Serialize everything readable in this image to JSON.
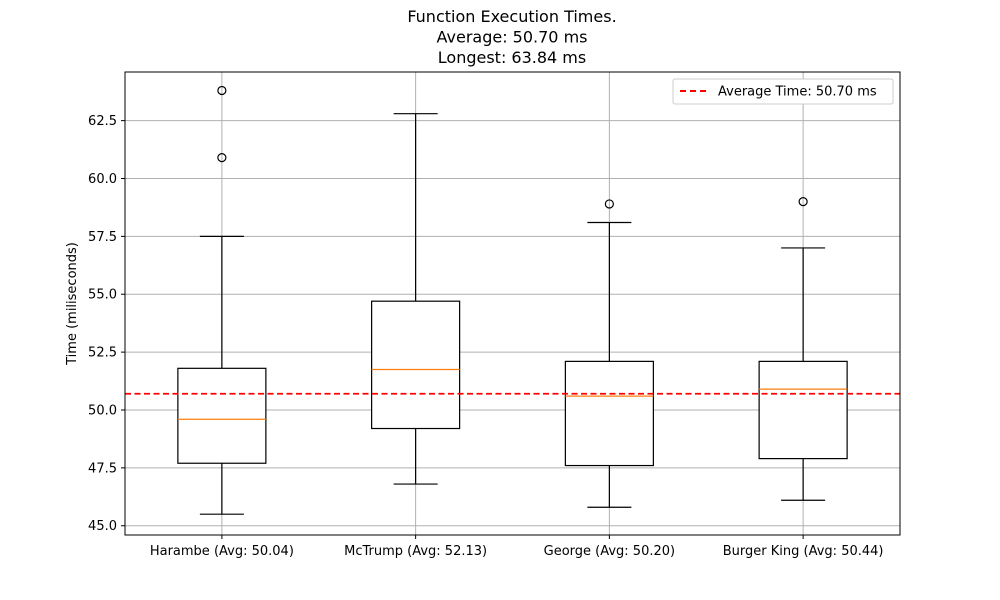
{
  "chart_data": {
    "type": "box",
    "title_lines": [
      "Function Execution Times.",
      "Average: 50.70 ms",
      "Longest: 63.84 ms"
    ],
    "xlabel": "",
    "ylabel": "Time (miliseconds)",
    "ylim": [
      44.6,
      64.6
    ],
    "yticks": [
      45.0,
      47.5,
      50.0,
      52.5,
      55.0,
      57.5,
      60.0,
      62.5
    ],
    "ytick_labels": [
      "45.0",
      "47.5",
      "50.0",
      "52.5",
      "55.0",
      "57.5",
      "60.0",
      "62.5"
    ],
    "grid": true,
    "categories": [
      "Harambe (Avg: 50.04)",
      "McTrump (Avg: 52.13)",
      "George (Avg: 50.20)",
      "Burger King (Avg: 50.44)"
    ],
    "boxes": [
      {
        "whisker_low": 45.5,
        "q1": 47.7,
        "median": 49.6,
        "q3": 51.8,
        "whisker_high": 57.5,
        "outliers": [
          60.9,
          63.8
        ]
      },
      {
        "whisker_low": 46.8,
        "q1": 49.2,
        "median": 51.75,
        "q3": 54.7,
        "whisker_high": 62.8,
        "outliers": []
      },
      {
        "whisker_low": 45.8,
        "q1": 47.6,
        "median": 50.6,
        "q3": 52.1,
        "whisker_high": 58.1,
        "outliers": [
          58.9
        ]
      },
      {
        "whisker_low": 46.1,
        "q1": 47.9,
        "median": 50.9,
        "q3": 52.1,
        "whisker_high": 57.0,
        "outliers": [
          59.0
        ]
      }
    ],
    "average_line": {
      "value": 50.7,
      "label": "Average Time: 50.70 ms",
      "color": "#ff0000"
    },
    "legend_position": "top-right",
    "colors": {
      "box": "#000000",
      "median": "#ff7f0e",
      "grid": "#b0b0b0",
      "average": "#ff0000"
    }
  }
}
